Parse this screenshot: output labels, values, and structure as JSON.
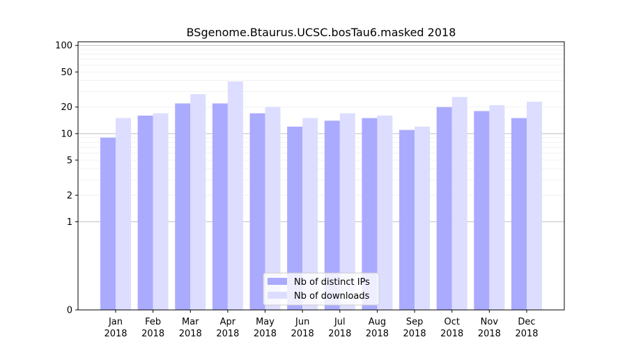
{
  "chart_data": {
    "type": "bar",
    "title": "BSgenome.Btaurus.UCSC.bosTau6.masked 2018",
    "xlabel": "",
    "ylabel": "",
    "y_scale": "symlog",
    "ylim": [
      0,
      110
    ],
    "y_ticks": [
      0,
      1,
      2,
      5,
      10,
      20,
      50,
      100
    ],
    "y_tick_labels": [
      "0",
      "1",
      "2",
      "5",
      "10",
      "20",
      "50",
      "100"
    ],
    "categories": [
      [
        "Jan",
        "2018"
      ],
      [
        "Feb",
        "2018"
      ],
      [
        "Mar",
        "2018"
      ],
      [
        "Apr",
        "2018"
      ],
      [
        "May",
        "2018"
      ],
      [
        "Jun",
        "2018"
      ],
      [
        "Jul",
        "2018"
      ],
      [
        "Aug",
        "2018"
      ],
      [
        "Sep",
        "2018"
      ],
      [
        "Oct",
        "2018"
      ],
      [
        "Nov",
        "2018"
      ],
      [
        "Dec",
        "2018"
      ]
    ],
    "series": [
      {
        "name": "Nb of distinct IPs",
        "color": "#aaaaff",
        "values": [
          9,
          16,
          22,
          22,
          17,
          12,
          14,
          15,
          11,
          20,
          18,
          15
        ]
      },
      {
        "name": "Nb of downloads",
        "color": "#ddddff",
        "values": [
          15,
          17,
          28,
          39,
          20,
          15,
          17,
          16,
          12,
          26,
          21,
          23
        ]
      }
    ],
    "grid": true,
    "legend_position": "bottom-center"
  }
}
